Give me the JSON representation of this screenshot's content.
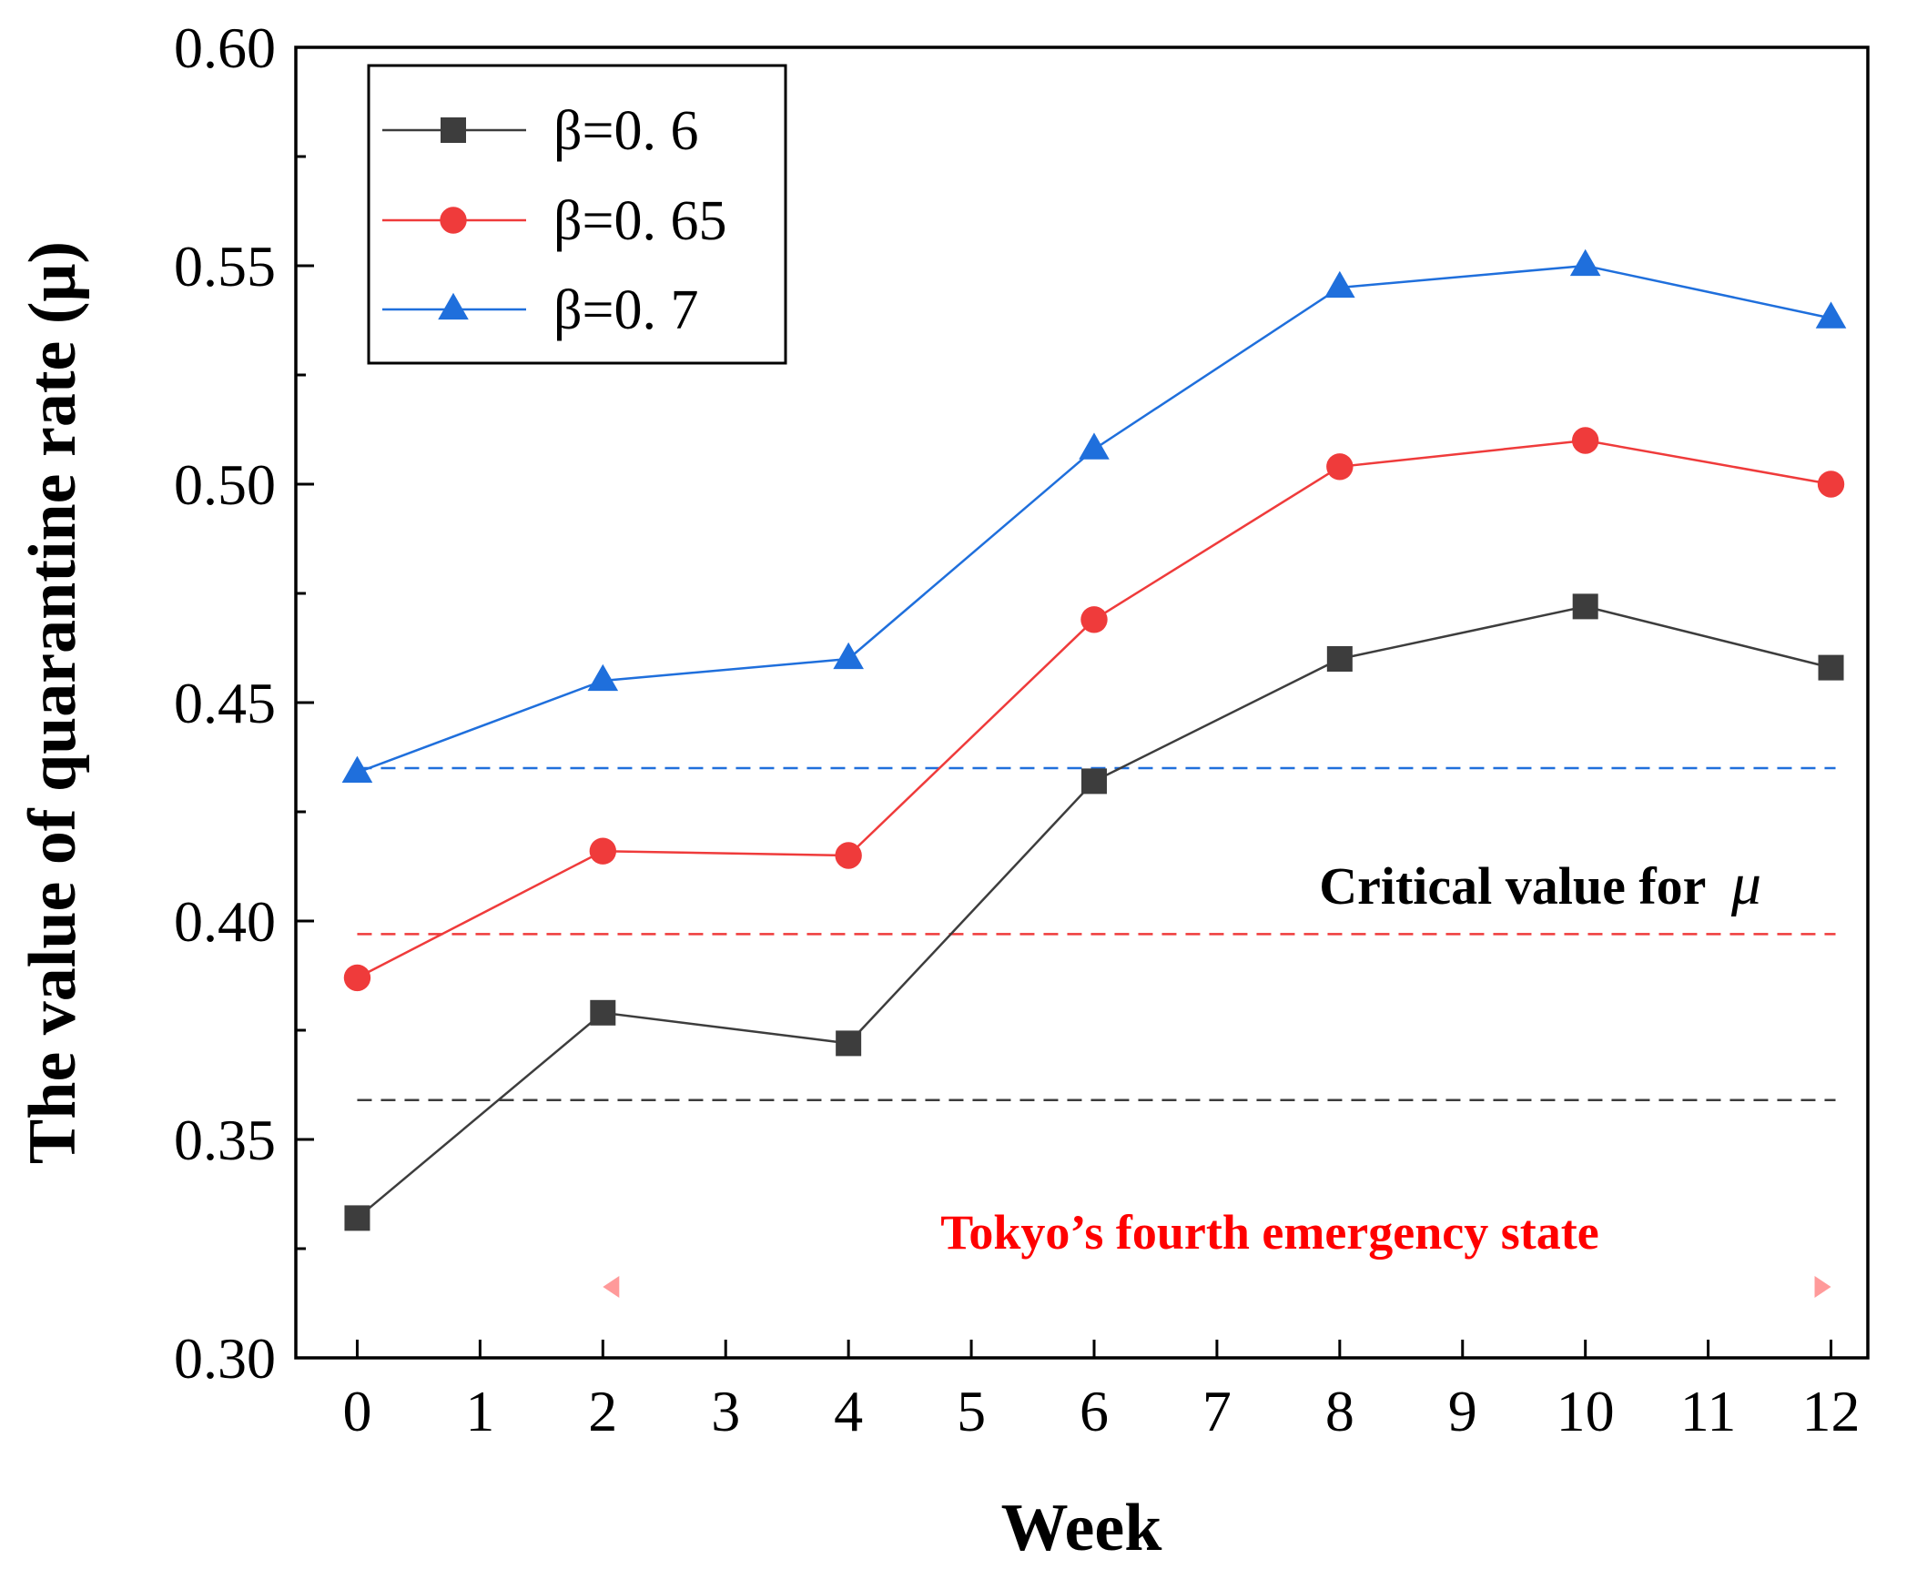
{
  "chart_data": {
    "type": "line",
    "xlabel": "Week",
    "ylabel": "The value of quarantine rate (μ)",
    "xlim": [
      -0.5,
      12.3
    ],
    "ylim": [
      0.3,
      0.6
    ],
    "xticks": [
      "0",
      "1",
      "2",
      "3",
      "4",
      "5",
      "6",
      "7",
      "8",
      "9",
      "10",
      "11",
      "12"
    ],
    "yticks": [
      "0.30",
      "0.35",
      "0.40",
      "0.45",
      "0.50",
      "0.55",
      "0.60"
    ],
    "x": [
      0,
      2,
      4,
      6,
      8,
      10,
      12
    ],
    "series": [
      {
        "name": "β=0. 6",
        "color": "#3d3d3d",
        "marker": "square",
        "values": [
          0.332,
          0.379,
          0.372,
          0.432,
          0.46,
          0.472,
          0.458
        ],
        "critical": 0.359
      },
      {
        "name": "β=0. 65",
        "color": "#ef3b3b",
        "marker": "circle",
        "values": [
          0.387,
          0.416,
          0.415,
          0.469,
          0.504,
          0.51,
          0.5
        ],
        "critical": 0.397
      },
      {
        "name": "β=0. 7",
        "color": "#1f6fdc",
        "marker": "triangle",
        "values": [
          0.434,
          0.455,
          0.46,
          0.508,
          0.545,
          0.55,
          0.538
        ],
        "critical": 0.435
      }
    ],
    "legend_position": "top-left",
    "annotations": {
      "critical_label": "Critical value for",
      "critical_symbol": "μ",
      "emergency_label": "Tokyo’s fourth emergency state",
      "emergency_range": [
        2,
        12
      ],
      "emergency_color": "#ff0000"
    }
  }
}
